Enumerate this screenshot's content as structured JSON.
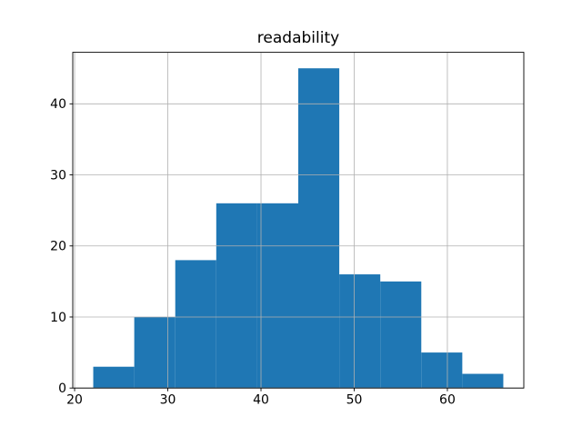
{
  "figure": {
    "background": "#ffffff",
    "bar_color": "#1f77b4",
    "grid_color": "#b0b0b0",
    "spine_color": "#000000",
    "text_color": "#000000"
  },
  "chart_data": {
    "type": "bar",
    "subtype": "histogram",
    "title": "readability",
    "xlabel": "",
    "ylabel": "",
    "bin_edges": [
      22,
      26.4,
      30.8,
      35.2,
      39.6,
      44,
      48.4,
      52.8,
      57.2,
      61.6,
      66
    ],
    "counts": [
      3,
      10,
      18,
      26,
      26,
      45,
      16,
      15,
      5,
      2
    ],
    "xlim": [
      19.8,
      68.2
    ],
    "ylim": [
      0,
      47.25
    ],
    "xticks": [
      20,
      30,
      40,
      50,
      60
    ],
    "yticks": [
      0,
      10,
      20,
      30,
      40
    ],
    "grid": true,
    "grid_above_bars": true,
    "legend_position": "none"
  }
}
